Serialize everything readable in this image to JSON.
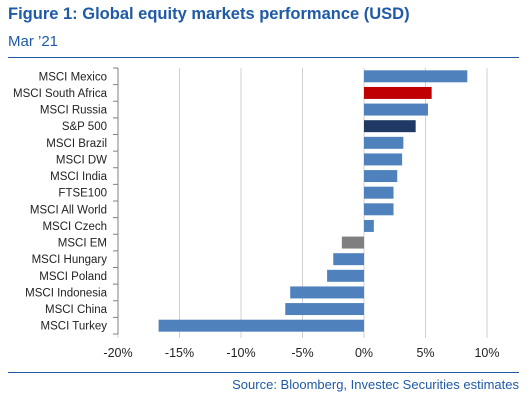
{
  "header": {
    "title": "Figure 1: Global equity markets performance (USD)",
    "subtitle": "Mar ’21",
    "source": "Source: Bloomberg, Investec Securities estimates"
  },
  "chart_data": {
    "type": "bar",
    "orientation": "horizontal",
    "title": "",
    "xlabel": "",
    "ylabel": "",
    "xlim": [
      -0.2,
      0.1
    ],
    "xticks": [
      -0.2,
      -0.15,
      -0.1,
      -0.05,
      0,
      0.05,
      0.1
    ],
    "xtick_labels": [
      "-20%",
      "-15%",
      "-10%",
      "-5%",
      "0%",
      "5%",
      "10%"
    ],
    "grid": true,
    "legend": "none",
    "categories": [
      "MSCI Mexico",
      "MSCI South Africa",
      "MSCI Russia",
      "S&P 500",
      "MSCI Brazil",
      "MSCI DW",
      "MSCI India",
      "FTSE100",
      "MSCI All World",
      "MSCI Czech",
      "MSCI EM",
      "MSCI Hungary",
      "MSCI Poland",
      "MSCI Indonesia",
      "MSCI China",
      "MSCI Turkey"
    ],
    "values": [
      0.084,
      0.055,
      0.052,
      0.042,
      0.032,
      0.031,
      0.027,
      0.024,
      0.024,
      0.008,
      -0.018,
      -0.025,
      -0.03,
      -0.06,
      -0.064,
      -0.167
    ],
    "colors": [
      "#4f81bd",
      "#c00000",
      "#4f81bd",
      "#1f3864",
      "#4f81bd",
      "#4f81bd",
      "#4f81bd",
      "#4f81bd",
      "#4f81bd",
      "#4f81bd",
      "#7f7f7f",
      "#4f81bd",
      "#4f81bd",
      "#4f81bd",
      "#4f81bd",
      "#4f81bd"
    ]
  }
}
